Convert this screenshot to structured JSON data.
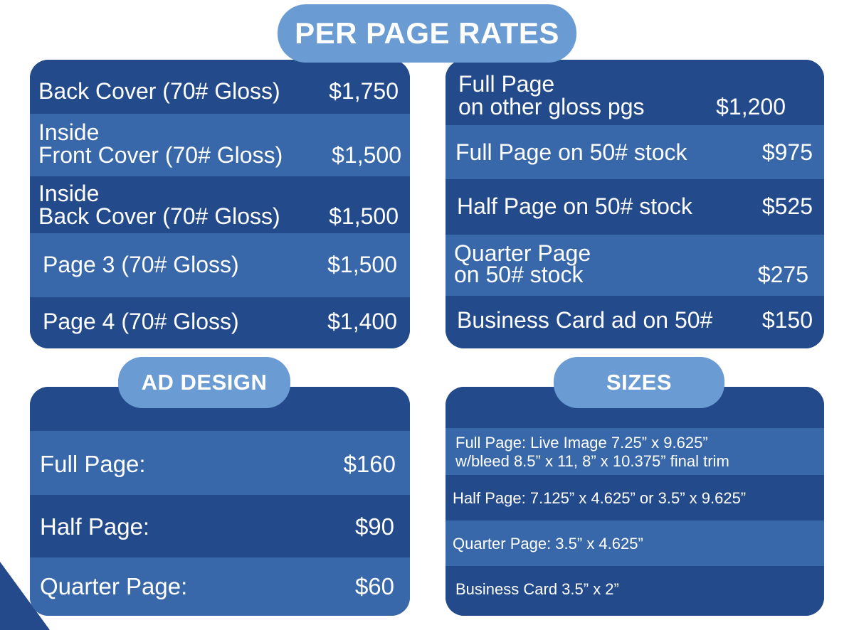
{
  "per_page_rates": {
    "title": "PER PAGE RATES",
    "left": [
      {
        "label_lines": [
          "Back Cover (70# Gloss)"
        ],
        "price": "$1,750"
      },
      {
        "label_lines": [
          "Inside",
          "Front Cover (70# Gloss)"
        ],
        "price": "$1,500"
      },
      {
        "label_lines": [
          "Inside",
          "Back Cover (70# Gloss)"
        ],
        "price": "$1,500"
      },
      {
        "label_lines": [
          "Page 3 (70# Gloss)"
        ],
        "price": "$1,500"
      },
      {
        "label_lines": [
          "Page 4 (70# Gloss)"
        ],
        "price": "$1,400"
      }
    ],
    "right": [
      {
        "label_lines": [
          "Full Page",
          "on other gloss pgs"
        ],
        "price": "$1,200"
      },
      {
        "label_lines": [
          "Full Page on 50# stock"
        ],
        "price": "$975"
      },
      {
        "label_lines": [
          "Half Page on 50# stock"
        ],
        "price": "$525"
      },
      {
        "label_lines": [
          "Quarter Page",
          "on 50# stock"
        ],
        "price": "$275"
      },
      {
        "label_lines": [
          "Business Card ad on 50#"
        ],
        "price": "$150"
      }
    ]
  },
  "ad_design": {
    "title": "AD DESIGN",
    "rows": [
      {
        "label": "Full Page:",
        "price": "$160"
      },
      {
        "label": "Half Page:",
        "price": "$90"
      },
      {
        "label": "Quarter Page:",
        "price": "$60"
      }
    ]
  },
  "sizes": {
    "title": "SIZES",
    "rows": [
      {
        "lines": [
          "Full Page: Live Image 7.25” x 9.625”",
          "w/bleed 8.5” x 11, 8” x 10.375” final trim"
        ]
      },
      {
        "lines": [
          "Half Page: 7.125” x 4.625” or 3.5” x 9.625”"
        ]
      },
      {
        "lines": [
          "Quarter Page:  3.5” x 4.625”"
        ]
      },
      {
        "lines": [
          "Business Card 3.5” x 2”"
        ]
      }
    ]
  },
  "colors": {
    "panel_dark": "#234a8b",
    "panel_light": "#3868a9",
    "pill": "#6a9bd3",
    "corner_accent": "#244a8c"
  }
}
